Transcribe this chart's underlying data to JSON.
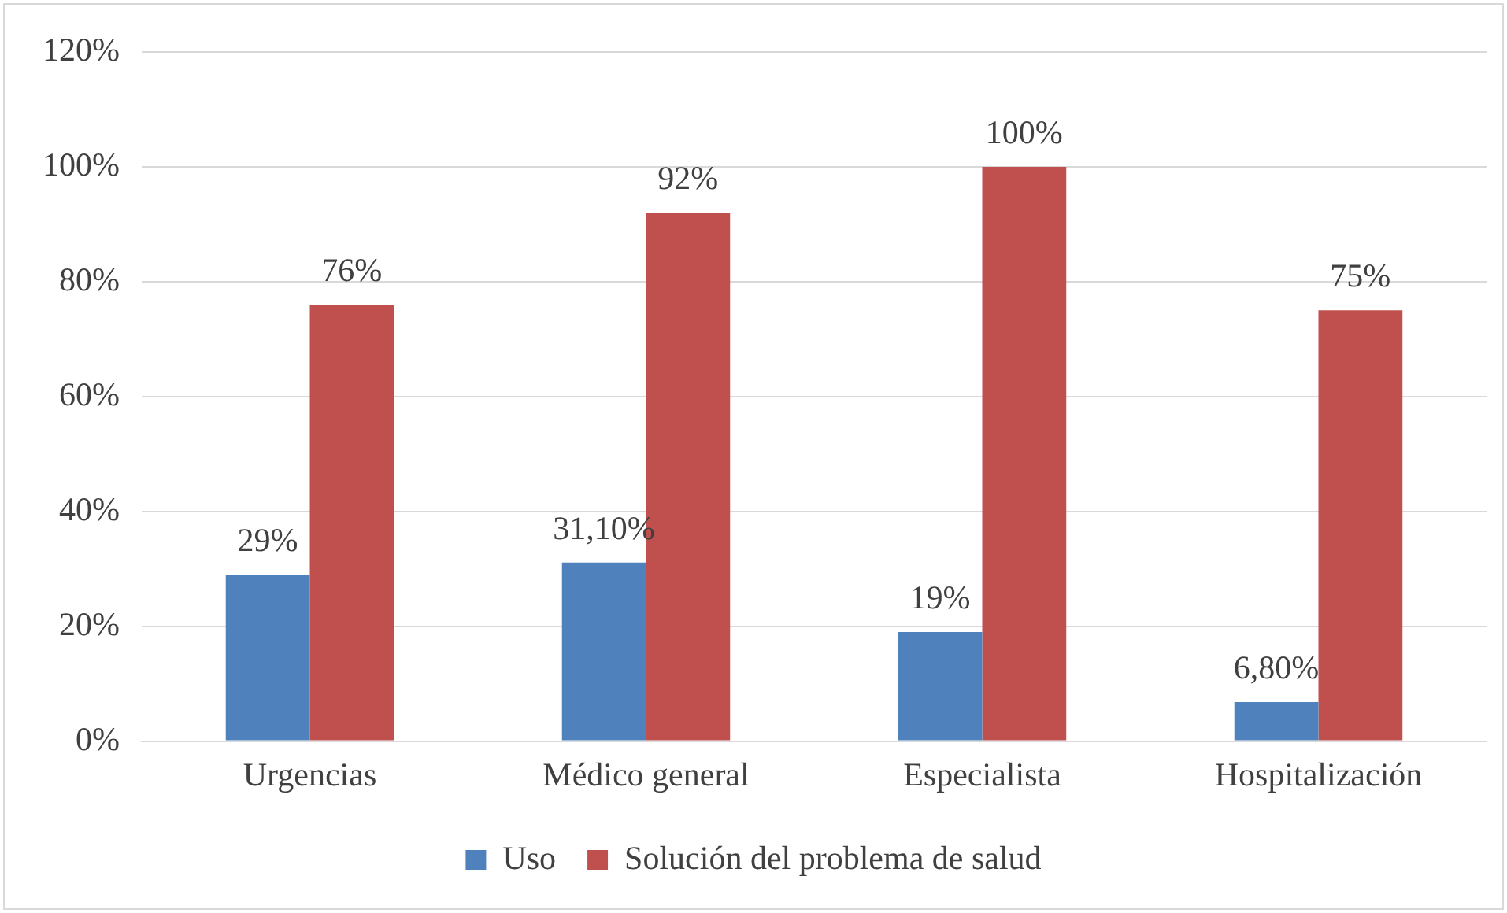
{
  "chart_data": {
    "type": "bar",
    "categories": [
      "Urgencias",
      "Médico general",
      "Especialista",
      "Hospitalización"
    ],
    "series": [
      {
        "name": "Uso",
        "color": "#4f81bd",
        "values": [
          29,
          31.1,
          19,
          6.8
        ],
        "value_labels": [
          "29%",
          "31,10%",
          "19%",
          "6,80%"
        ]
      },
      {
        "name": "Solución del problema de salud",
        "color": "#c0504d",
        "values": [
          76,
          92,
          100,
          75
        ],
        "value_labels": [
          "76%",
          "92%",
          "100%",
          "75%"
        ]
      }
    ],
    "ylim": [
      0,
      120
    ],
    "yticks": [
      {
        "value": 0,
        "label": "0%"
      },
      {
        "value": 20,
        "label": "20%"
      },
      {
        "value": 40,
        "label": "40%"
      },
      {
        "value": 60,
        "label": "60%"
      },
      {
        "value": 80,
        "label": "80%"
      },
      {
        "value": 100,
        "label": "100%"
      },
      {
        "value": 120,
        "label": "120%"
      }
    ],
    "grid": "y",
    "legend": "bottom"
  }
}
